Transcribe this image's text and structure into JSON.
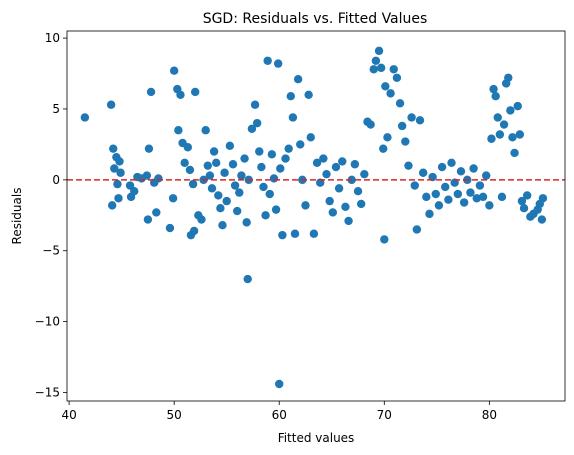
{
  "chart_data": {
    "type": "scatter",
    "title": "SGD: Residuals vs. Fitted Values",
    "xlabel": "Fitted values",
    "ylabel": "Residuals",
    "xlim": [
      39.8,
      87.2
    ],
    "ylim": [
      -15.6,
      10.5
    ],
    "x_ticks": [
      40,
      50,
      60,
      70,
      80
    ],
    "x_tick_labels": [
      "40",
      "50",
      "60",
      "70",
      "80"
    ],
    "y_ticks": [
      -15,
      -10,
      -5,
      0,
      5,
      10
    ],
    "y_tick_labels": [
      "−15",
      "−10",
      "−5",
      "0",
      "5",
      "10"
    ],
    "reference_line": {
      "y": 0,
      "color": "#d62728",
      "style": "dashed"
    },
    "point_color": "#1f77b4",
    "grid": false,
    "points": [
      [
        41.5,
        4.4
      ],
      [
        44.0,
        5.3
      ],
      [
        44.2,
        2.2
      ],
      [
        44.5,
        1.6
      ],
      [
        44.8,
        1.3
      ],
      [
        44.3,
        0.8
      ],
      [
        44.9,
        0.5
      ],
      [
        44.6,
        -0.3
      ],
      [
        44.1,
        -1.8
      ],
      [
        44.7,
        -1.3
      ],
      [
        45.8,
        -0.4
      ],
      [
        46.2,
        -0.8
      ],
      [
        46.5,
        0.2
      ],
      [
        45.9,
        -1.2
      ],
      [
        46.9,
        0.1
      ],
      [
        47.4,
        0.3
      ],
      [
        47.6,
        2.2
      ],
      [
        47.8,
        6.2
      ],
      [
        47.5,
        -2.8
      ],
      [
        48.1,
        -0.2
      ],
      [
        48.5,
        0.1
      ],
      [
        48.3,
        -2.3
      ],
      [
        49.6,
        -3.4
      ],
      [
        49.9,
        -1.3
      ],
      [
        50.0,
        7.7
      ],
      [
        50.3,
        6.4
      ],
      [
        50.6,
        6.0
      ],
      [
        50.4,
        3.5
      ],
      [
        50.8,
        2.6
      ],
      [
        51.0,
        1.2
      ],
      [
        51.3,
        2.3
      ],
      [
        51.5,
        0.7
      ],
      [
        51.8,
        -0.3
      ],
      [
        52.0,
        6.2
      ],
      [
        51.6,
        -3.9
      ],
      [
        51.9,
        -3.6
      ],
      [
        52.3,
        -2.5
      ],
      [
        52.6,
        -2.8
      ],
      [
        52.8,
        0.0
      ],
      [
        53.0,
        3.5
      ],
      [
        53.2,
        1.0
      ],
      [
        53.4,
        0.3
      ],
      [
        53.6,
        -0.6
      ],
      [
        53.8,
        2.0
      ],
      [
        54.0,
        1.2
      ],
      [
        54.2,
        -1.1
      ],
      [
        54.4,
        -2.0
      ],
      [
        54.6,
        -3.2
      ],
      [
        54.8,
        0.5
      ],
      [
        55.0,
        -1.5
      ],
      [
        55.3,
        2.4
      ],
      [
        55.6,
        1.1
      ],
      [
        55.8,
        -0.4
      ],
      [
        56.0,
        -2.2
      ],
      [
        56.2,
        -0.9
      ],
      [
        56.4,
        0.3
      ],
      [
        56.7,
        1.5
      ],
      [
        56.9,
        -3.0
      ],
      [
        57.1,
        0.0
      ],
      [
        57.0,
        -7.0
      ],
      [
        57.4,
        3.6
      ],
      [
        57.7,
        5.3
      ],
      [
        57.9,
        4.0
      ],
      [
        58.1,
        2.0
      ],
      [
        58.3,
        0.9
      ],
      [
        58.5,
        -0.5
      ],
      [
        58.7,
        -2.5
      ],
      [
        58.9,
        8.4
      ],
      [
        59.1,
        -1.0
      ],
      [
        59.3,
        1.8
      ],
      [
        59.5,
        0.1
      ],
      [
        59.7,
        -2.1
      ],
      [
        59.9,
        8.2
      ],
      [
        60.1,
        0.8
      ],
      [
        60.0,
        -14.4
      ],
      [
        60.3,
        -3.9
      ],
      [
        60.6,
        1.5
      ],
      [
        60.9,
        2.2
      ],
      [
        61.1,
        5.9
      ],
      [
        61.3,
        4.4
      ],
      [
        61.5,
        -3.8
      ],
      [
        61.8,
        7.1
      ],
      [
        62.0,
        2.5
      ],
      [
        62.2,
        0.0
      ],
      [
        62.5,
        -1.8
      ],
      [
        62.8,
        6.0
      ],
      [
        63.0,
        3.0
      ],
      [
        63.3,
        -3.8
      ],
      [
        63.6,
        1.2
      ],
      [
        63.9,
        -0.2
      ],
      [
        64.2,
        1.5
      ],
      [
        64.5,
        0.4
      ],
      [
        64.8,
        -1.5
      ],
      [
        65.1,
        -2.3
      ],
      [
        65.4,
        0.9
      ],
      [
        65.7,
        -0.6
      ],
      [
        66.0,
        1.3
      ],
      [
        66.3,
        -1.9
      ],
      [
        66.6,
        -2.9
      ],
      [
        66.9,
        0.0
      ],
      [
        67.2,
        1.1
      ],
      [
        67.5,
        -0.8
      ],
      [
        67.8,
        -1.7
      ],
      [
        68.1,
        0.4
      ],
      [
        68.4,
        4.1
      ],
      [
        68.7,
        3.9
      ],
      [
        69.0,
        7.8
      ],
      [
        69.2,
        8.4
      ],
      [
        69.5,
        9.1
      ],
      [
        69.7,
        7.9
      ],
      [
        69.9,
        2.2
      ],
      [
        70.1,
        6.6
      ],
      [
        70.3,
        3.0
      ],
      [
        70.0,
        -4.2
      ],
      [
        70.6,
        6.1
      ],
      [
        70.9,
        7.8
      ],
      [
        71.2,
        7.2
      ],
      [
        71.5,
        5.4
      ],
      [
        71.7,
        3.8
      ],
      [
        72.0,
        2.7
      ],
      [
        72.3,
        1.0
      ],
      [
        72.6,
        4.4
      ],
      [
        72.9,
        -0.4
      ],
      [
        73.1,
        -3.5
      ],
      [
        73.4,
        4.2
      ],
      [
        73.7,
        0.5
      ],
      [
        74.0,
        -1.2
      ],
      [
        74.3,
        -2.4
      ],
      [
        74.6,
        0.2
      ],
      [
        74.9,
        -1.0
      ],
      [
        75.2,
        -1.8
      ],
      [
        75.5,
        0.9
      ],
      [
        75.8,
        -0.5
      ],
      [
        76.1,
        -1.4
      ],
      [
        76.4,
        1.2
      ],
      [
        76.7,
        -0.2
      ],
      [
        77.0,
        -1.0
      ],
      [
        77.3,
        0.6
      ],
      [
        77.6,
        -1.6
      ],
      [
        77.9,
        0.0
      ],
      [
        78.2,
        -0.9
      ],
      [
        78.5,
        0.8
      ],
      [
        78.8,
        -1.3
      ],
      [
        79.1,
        -0.4
      ],
      [
        79.4,
        -1.2
      ],
      [
        79.7,
        0.3
      ],
      [
        80.0,
        -1.8
      ],
      [
        80.2,
        2.9
      ],
      [
        80.4,
        6.4
      ],
      [
        80.6,
        5.9
      ],
      [
        80.8,
        4.4
      ],
      [
        81.0,
        3.2
      ],
      [
        81.2,
        -1.2
      ],
      [
        81.4,
        3.9
      ],
      [
        81.6,
        6.8
      ],
      [
        81.8,
        7.2
      ],
      [
        82.0,
        4.9
      ],
      [
        82.2,
        3.0
      ],
      [
        82.4,
        1.9
      ],
      [
        82.7,
        5.2
      ],
      [
        82.9,
        3.2
      ],
      [
        83.1,
        -1.5
      ],
      [
        83.3,
        -2.0
      ],
      [
        83.6,
        -1.1
      ],
      [
        83.9,
        -2.6
      ],
      [
        84.2,
        -2.4
      ],
      [
        84.6,
        -2.1
      ],
      [
        85.0,
        -2.8
      ],
      [
        85.1,
        -1.3
      ],
      [
        84.8,
        -1.7
      ]
    ]
  }
}
